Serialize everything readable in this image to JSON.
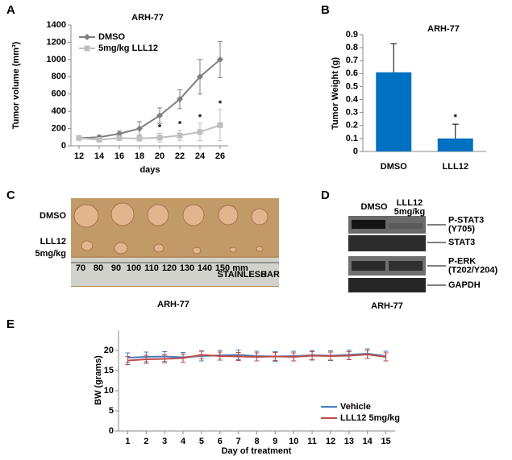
{
  "panel_labels": [
    "A",
    "B",
    "C",
    "D",
    "E"
  ],
  "chart_data": [
    {
      "type": "line",
      "title": "ARH-77",
      "x_label": "days",
      "y_label": "Tumor volume (mm³)",
      "x": [
        12,
        14,
        16,
        18,
        20,
        22,
        24,
        26
      ],
      "series": [
        {
          "name": "DMSO",
          "color": "#7f7f7f",
          "marker": "diamond",
          "values": [
            90,
            100,
            140,
            200,
            350,
            540,
            800,
            1000
          ],
          "errors": [
            10,
            20,
            30,
            80,
            90,
            110,
            200,
            210
          ]
        },
        {
          "name": "5mg/kg LLL12",
          "color": "#bfbfbf",
          "marker": "square",
          "values": [
            90,
            70,
            90,
            85,
            95,
            120,
            160,
            240
          ],
          "errors": [
            10,
            10,
            20,
            30,
            50,
            60,
            100,
            180
          ]
        }
      ],
      "annotations": [
        {
          "text": "*",
          "x": 20
        },
        {
          "text": "*",
          "x": 22
        },
        {
          "text": "*",
          "x": 24
        },
        {
          "text": "*",
          "x": 26
        }
      ],
      "annotation_color": "#e00000",
      "xlim": [
        11.2,
        26.8
      ],
      "xticks": [
        12,
        14,
        16,
        18,
        20,
        22,
        24,
        26
      ],
      "ylim": [
        0,
        1400
      ],
      "yticks": [
        0,
        200,
        400,
        600,
        800,
        1000,
        1200,
        1400
      ],
      "legend": "upper left"
    },
    {
      "type": "bar",
      "title": "ARH-77",
      "y_label": "Tumor Weight (g)",
      "categories": [
        "DMSO",
        "LLL12"
      ],
      "values": [
        0.61,
        0.1
      ],
      "errors": [
        0.22,
        0.11
      ],
      "color": "#0070c0",
      "annotations": [
        {
          "text": "*",
          "category": "LLL12"
        }
      ],
      "annotation_color": "#e00000",
      "ylim": [
        0,
        0.9
      ],
      "yticks": [
        0,
        0.1,
        0.2,
        0.3,
        0.4,
        0.5,
        0.6,
        0.7,
        0.8,
        0.9
      ]
    },
    {
      "type": "line",
      "x_label": "Day of treatment",
      "y_label": "BW (grams)",
      "x": [
        1,
        2,
        3,
        4,
        5,
        6,
        7,
        8,
        9,
        10,
        11,
        12,
        13,
        14,
        15
      ],
      "series": [
        {
          "name": "Vehicle",
          "color": "#4a7ebb",
          "values": [
            18.2,
            18.4,
            18.5,
            18.3,
            18.6,
            18.8,
            18.9,
            18.6,
            18.5,
            18.6,
            18.8,
            18.7,
            18.9,
            19.2,
            18.6
          ],
          "errors": [
            1.2,
            1.2,
            1.2,
            1.2,
            1.2,
            1.2,
            1.2,
            1.2,
            1.2,
            1.2,
            1.2,
            1.2,
            1.2,
            1.2,
            1.2
          ]
        },
        {
          "name": "LLL12 5mg/kg",
          "color": "#be4b48",
          "values": [
            17.5,
            17.8,
            17.9,
            18.1,
            18.9,
            18.6,
            18.5,
            18.4,
            18.5,
            18.4,
            18.7,
            18.6,
            18.7,
            19.0,
            18.4
          ],
          "errors": [
            1.0,
            1.0,
            1.0,
            1.0,
            1.0,
            1.0,
            1.0,
            1.0,
            1.0,
            1.0,
            1.0,
            1.0,
            1.0,
            1.0,
            1.0
          ]
        }
      ],
      "xlim": [
        0.5,
        15.5
      ],
      "xticks": [
        1,
        2,
        3,
        4,
        5,
        6,
        7,
        8,
        9,
        10,
        11,
        12,
        13,
        14,
        15
      ],
      "ylim": [
        0,
        25
      ],
      "yticks": [
        0,
        5,
        10,
        15,
        20
      ],
      "legend": "center right"
    }
  ],
  "photo": {
    "rows": [
      [
        "DMSO"
      ],
      [
        "LLL12",
        "5mg/kg"
      ]
    ],
    "ruler": [
      "70",
      "80",
      "90",
      "100",
      "110",
      "120",
      "130",
      "140",
      "150",
      "mm",
      "STAINLESS",
      "HAR"
    ],
    "caption": "ARH-77"
  },
  "blot": {
    "columns": [
      [
        "DMSO"
      ],
      [
        "LLL12",
        "5mg/kg"
      ]
    ],
    "bands": [
      [
        "P-STAT3",
        "(Y705)"
      ],
      [
        "STAT3"
      ],
      [
        "P-ERK",
        "(T202/Y204)"
      ],
      [
        "GAPDH"
      ]
    ],
    "caption": "ARH-77"
  }
}
